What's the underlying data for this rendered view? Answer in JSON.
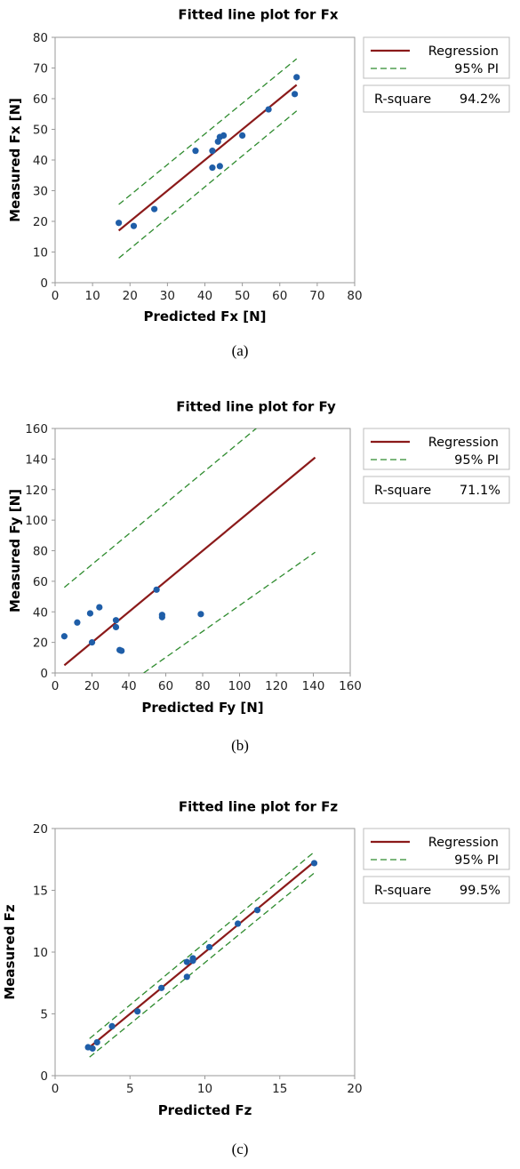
{
  "chart_data": [
    {
      "type": "scatter",
      "title": "Fitted line plot for Fx",
      "xlabel": "Predicted Fx [N]",
      "ylabel": "Measured Fx [N]",
      "xlim": [
        0,
        80
      ],
      "ylim": [
        0,
        80
      ],
      "xticks": [
        "0",
        "10",
        "20",
        "30",
        "40",
        "50",
        "60",
        "70",
        "80"
      ],
      "yticks": [
        "0",
        "10",
        "20",
        "30",
        "40",
        "50",
        "60",
        "70",
        "80"
      ],
      "points": [
        {
          "x": 17,
          "y": 19.5
        },
        {
          "x": 21,
          "y": 18.5
        },
        {
          "x": 26.5,
          "y": 24
        },
        {
          "x": 37.5,
          "y": 43
        },
        {
          "x": 42,
          "y": 43
        },
        {
          "x": 42,
          "y": 37.5
        },
        {
          "x": 43.5,
          "y": 46
        },
        {
          "x": 44,
          "y": 47.5
        },
        {
          "x": 44,
          "y": 38
        },
        {
          "x": 45,
          "y": 48
        },
        {
          "x": 50,
          "y": 48
        },
        {
          "x": 57,
          "y": 56.5
        },
        {
          "x": 64,
          "y": 61.5
        },
        {
          "x": 64.5,
          "y": 67
        }
      ],
      "regression": {
        "x": [
          17,
          64.5
        ],
        "y": [
          17,
          64.5
        ]
      },
      "pi_upper": {
        "x": [
          17,
          64.5
        ],
        "y": [
          25.5,
          73
        ]
      },
      "pi_lower": {
        "x": [
          17,
          64.5
        ],
        "y": [
          8,
          56
        ]
      },
      "legend": {
        "regression": "Regression",
        "pi": "95% PI",
        "rsq_label": "R-square",
        "rsq_value": "94.2%"
      },
      "caption": "(a)",
      "colors": {
        "regression": "#8b1a1a",
        "pi": "#2e8b2e",
        "points": "#1f5ea8",
        "axes": "#888888"
      }
    },
    {
      "type": "scatter",
      "title": "Fitted line plot for Fy",
      "xlabel": "Predicted Fy [N]",
      "ylabel": "Measured Fy [N]",
      "xlim": [
        0,
        160
      ],
      "ylim": [
        0,
        160
      ],
      "xticks": [
        "0",
        "20",
        "40",
        "60",
        "80",
        "100",
        "120",
        "140",
        "160"
      ],
      "yticks": [
        "0",
        "20",
        "40",
        "60",
        "80",
        "100",
        "120",
        "140",
        "160"
      ],
      "points": [
        {
          "x": 5,
          "y": 24
        },
        {
          "x": 12,
          "y": 33
        },
        {
          "x": 19,
          "y": 39
        },
        {
          "x": 20,
          "y": 20
        },
        {
          "x": 24,
          "y": 43
        },
        {
          "x": 33,
          "y": 30
        },
        {
          "x": 33,
          "y": 34.5
        },
        {
          "x": 35,
          "y": 15
        },
        {
          "x": 36,
          "y": 14.5
        },
        {
          "x": 55,
          "y": 54.5
        },
        {
          "x": 58,
          "y": 36.5
        },
        {
          "x": 58,
          "y": 38
        },
        {
          "x": 79,
          "y": 38.5
        }
      ],
      "regression": {
        "x": [
          5,
          141
        ],
        "y": [
          5,
          141
        ]
      },
      "pi_upper": {
        "x": [
          5,
          110
        ],
        "y": [
          56,
          161
        ]
      },
      "pi_lower": {
        "x": [
          48,
          141
        ],
        "y": [
          0,
          79
        ]
      },
      "legend": {
        "regression": "Regression",
        "pi": "95% PI",
        "rsq_label": "R-square",
        "rsq_value": "71.1%"
      },
      "caption": "(b)",
      "colors": {
        "regression": "#8b1a1a",
        "pi": "#2e8b2e",
        "points": "#1f5ea8",
        "axes": "#888888"
      }
    },
    {
      "type": "scatter",
      "title": "Fitted line plot for Fz",
      "xlabel": "Predicted Fz",
      "ylabel": "Measured Fz",
      "xlim": [
        0,
        20
      ],
      "ylim": [
        0,
        20
      ],
      "xticks": [
        "0",
        "5",
        "10",
        "15",
        "20"
      ],
      "yticks": [
        "0",
        "5",
        "10",
        "15",
        "20"
      ],
      "points": [
        {
          "x": 2.2,
          "y": 2.3
        },
        {
          "x": 2.5,
          "y": 2.2
        },
        {
          "x": 2.8,
          "y": 2.7
        },
        {
          "x": 3.8,
          "y": 4
        },
        {
          "x": 5.5,
          "y": 5.2
        },
        {
          "x": 7.1,
          "y": 7.1
        },
        {
          "x": 8.8,
          "y": 8
        },
        {
          "x": 8.8,
          "y": 9.2
        },
        {
          "x": 9.2,
          "y": 9.3
        },
        {
          "x": 9.2,
          "y": 9.5
        },
        {
          "x": 10.3,
          "y": 10.4
        },
        {
          "x": 12.2,
          "y": 12.3
        },
        {
          "x": 13.5,
          "y": 13.4
        },
        {
          "x": 17.3,
          "y": 17.2
        }
      ],
      "regression": {
        "x": [
          2.3,
          17.3
        ],
        "y": [
          2.3,
          17.3
        ]
      },
      "pi_upper": {
        "x": [
          2.3,
          17.3
        ],
        "y": [
          3.0,
          18.1
        ]
      },
      "pi_lower": {
        "x": [
          2.3,
          17.3
        ],
        "y": [
          1.5,
          16.4
        ]
      },
      "legend": {
        "regression": "Regression",
        "pi": "95% PI",
        "rsq_label": "R-square",
        "rsq_value": "99.5%"
      },
      "caption": "(c)",
      "colors": {
        "regression": "#8b1a1a",
        "pi": "#2e8b2e",
        "points": "#1f5ea8",
        "axes": "#888888"
      }
    }
  ]
}
